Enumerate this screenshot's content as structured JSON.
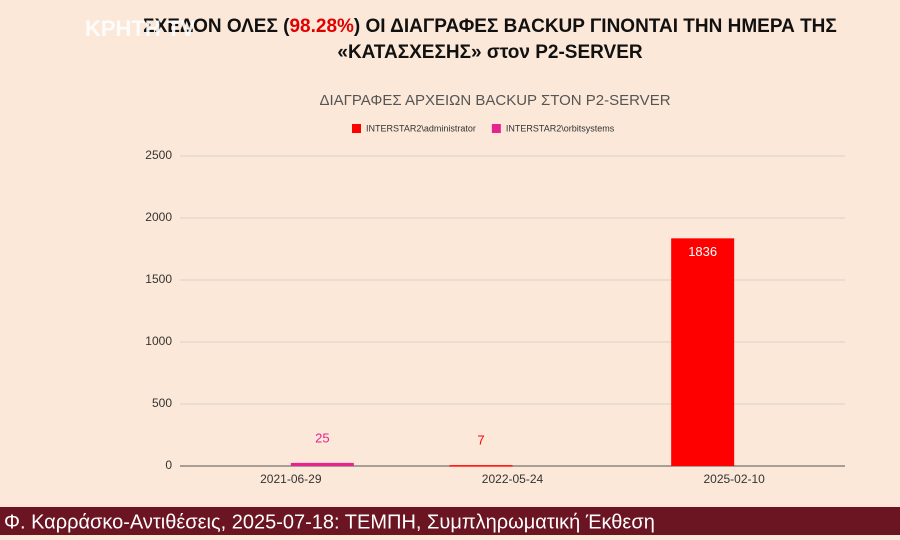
{
  "logo": "ΚΡΗΤΗ TV",
  "slide_title": {
    "before": "ΣΧΕΔΟΝ ΟΛΕΣ (",
    "highlight": "98.28%",
    "after": ") ΟΙ ΔΙΑΓΡΑΦΕΣ BACKUP ΓΙΝΟΝΤΑΙ ΤΗΝ ΗΜΕΡΑ ΤΗΣ",
    "line2": "«ΚΑΤΑΣΧΕΣΗΣ» στον P2-SERVER"
  },
  "ticker": "Φ. Καρράσκο-Αντιθέσεις, 2025-07-18: ΤΕΜΠΗ, Συμπληρωματική Έκθεση",
  "chart_data": {
    "type": "bar",
    "title": "ΔΙΑΓΡΑΦΕΣ ΑΡΧΕΙΩΝ BACKUP ΣΤΟΝ P2-SERVER",
    "categories": [
      "2021-06-29",
      "2022-05-24",
      "2025-02-10"
    ],
    "series": [
      {
        "name": "INTERSTAR2\\administrator",
        "color": "#ff0000",
        "values": [
          null,
          7,
          1836
        ]
      },
      {
        "name": "INTERSTAR2\\orbitsystems",
        "color": "#e6238f",
        "values": [
          25,
          null,
          null
        ]
      }
    ],
    "ylim": [
      0,
      2500
    ],
    "yticks": [
      0,
      500,
      1000,
      1500,
      2000,
      2500
    ],
    "grid": true,
    "legend": "top"
  }
}
